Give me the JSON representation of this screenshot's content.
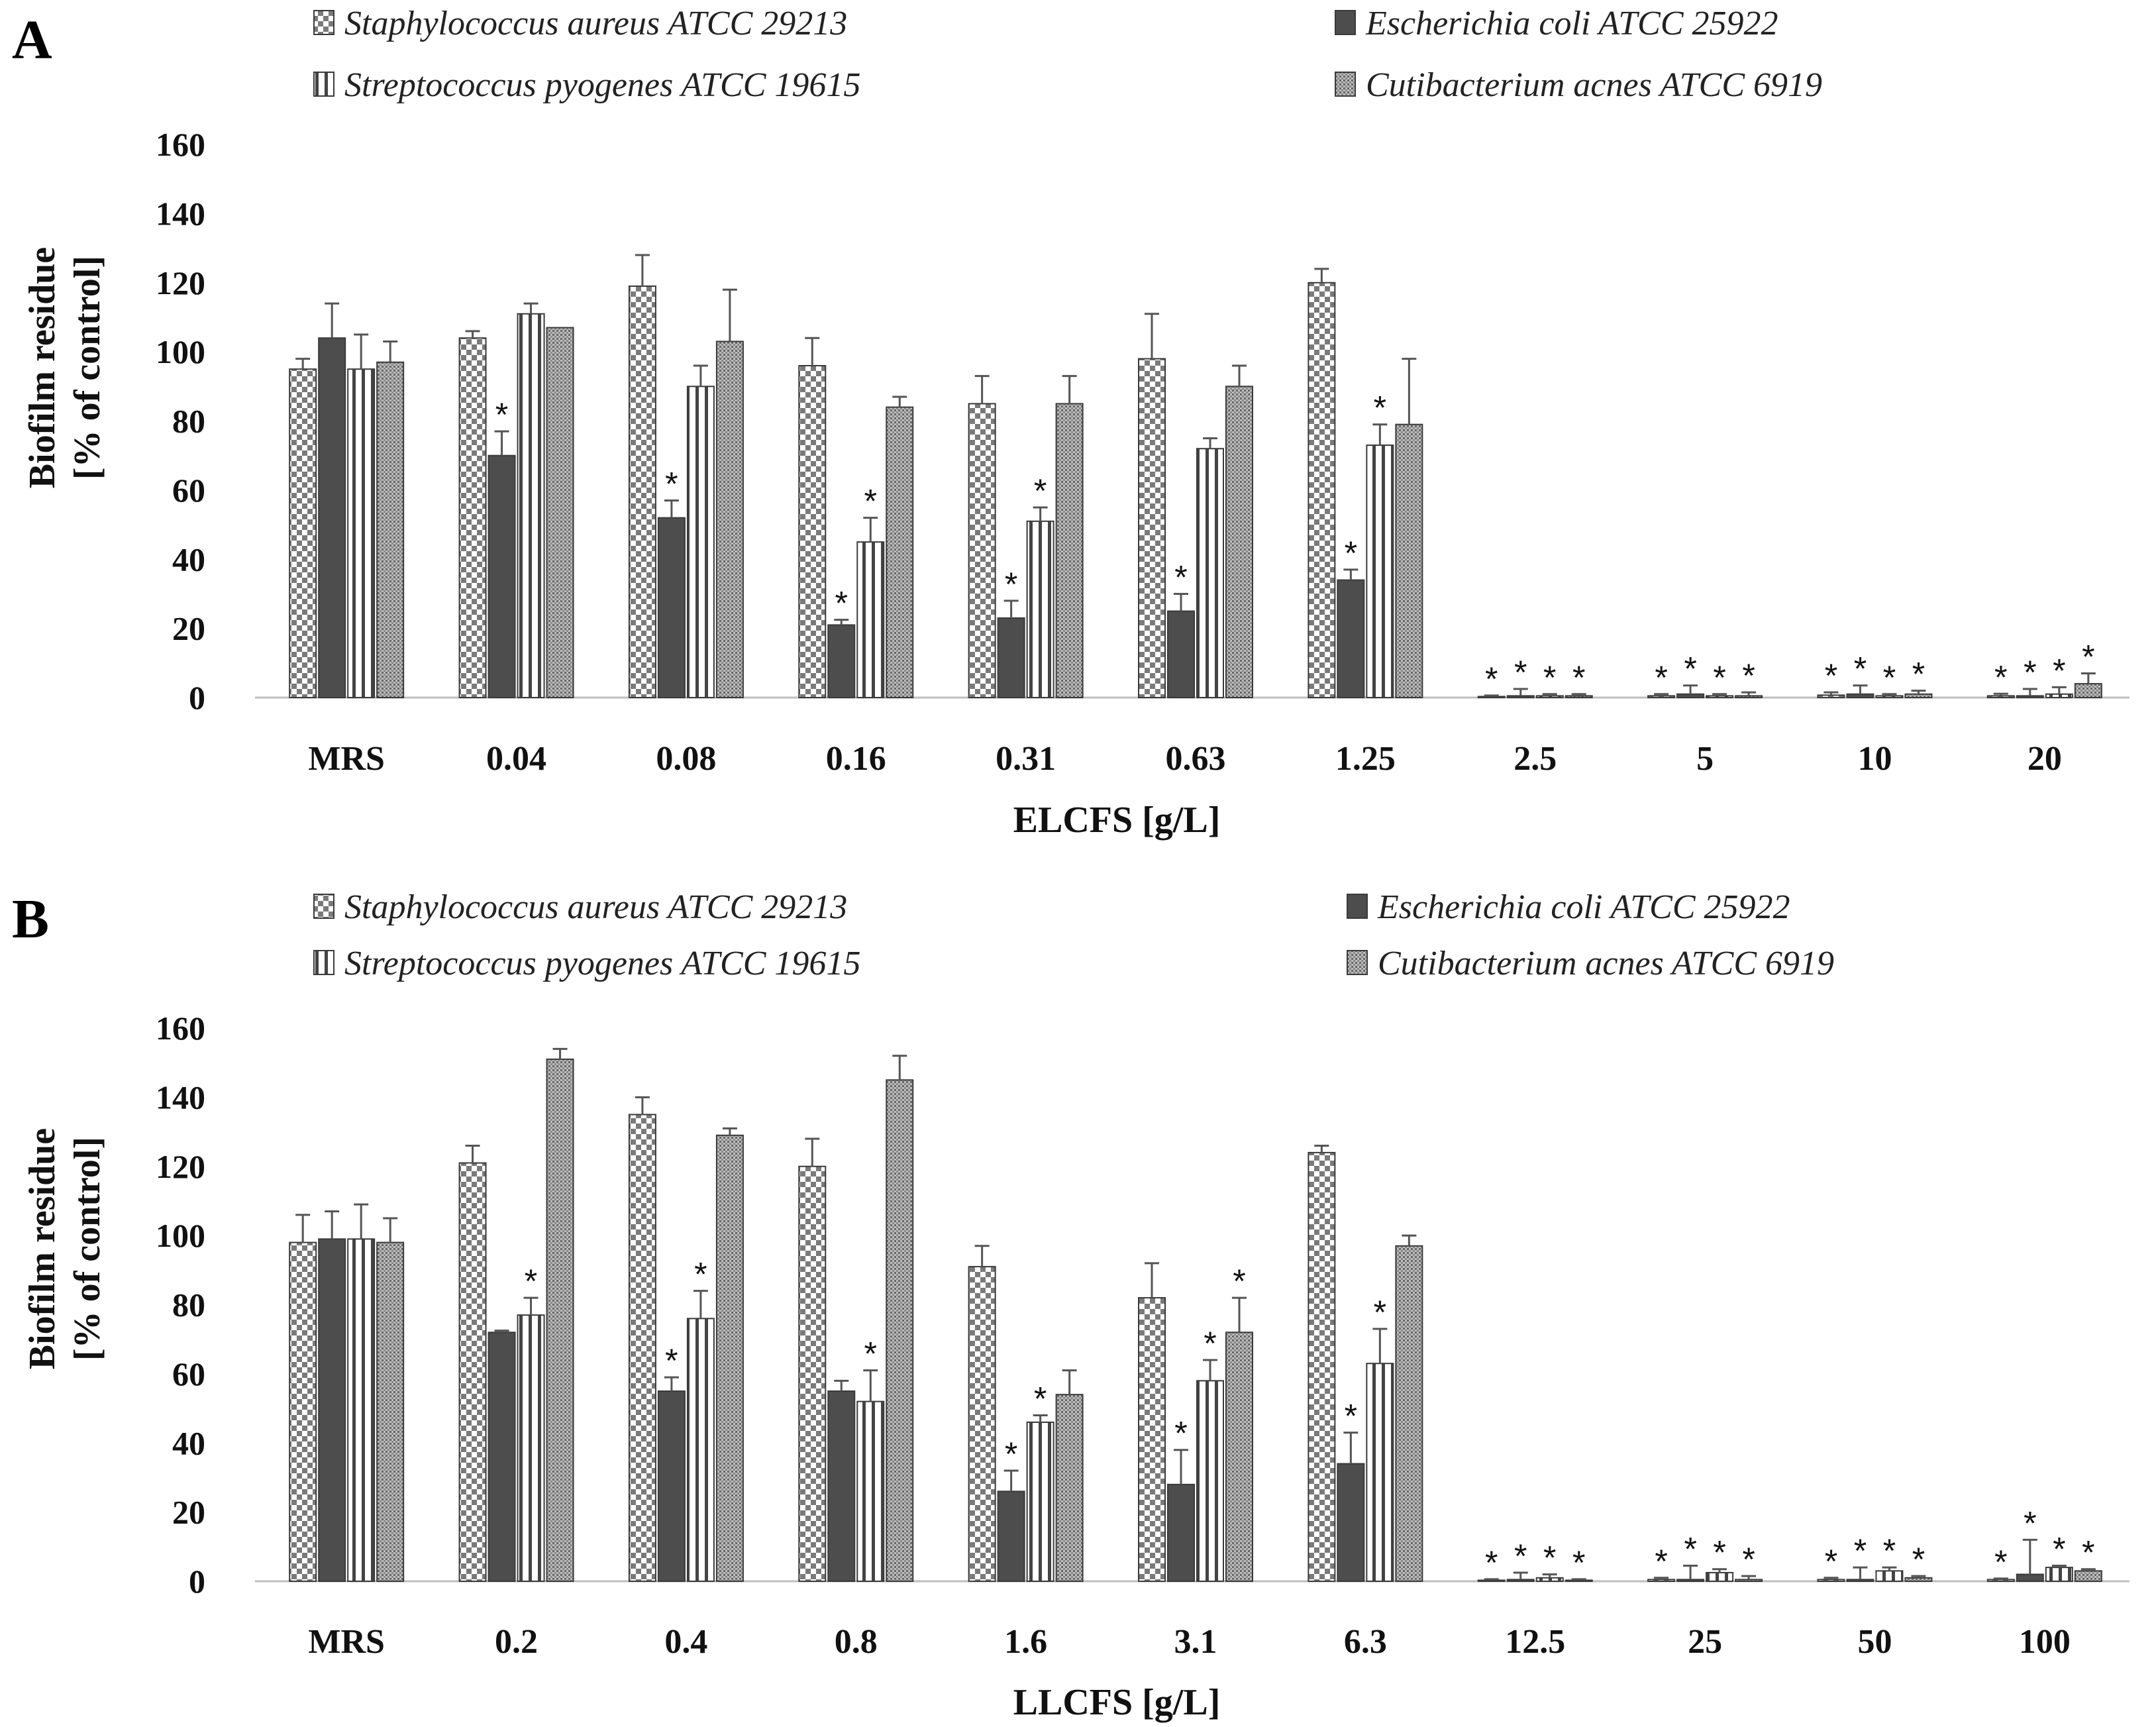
{
  "chart_data": [
    {
      "panel": "A",
      "type": "bar",
      "xlabel": "ELCFS [g/L]",
      "ylabel_line1": "Biofilm residue",
      "ylabel_line2": "[% of control]",
      "ylim": [
        0,
        160
      ],
      "yticks": [
        0,
        20,
        40,
        60,
        80,
        100,
        120,
        140,
        160
      ],
      "categories": [
        "MRS",
        "0.04",
        "0.08",
        "0.16",
        "0.31",
        "0.63",
        "1.25",
        "2.5",
        "5",
        "10",
        "20"
      ],
      "series": [
        {
          "name": "Staphylococcus aureus ATCC 29213",
          "pattern": "checker",
          "values": [
            95,
            104,
            119,
            96,
            85,
            98,
            120,
            0.3,
            0.5,
            0.7,
            0.5
          ],
          "errors": [
            3,
            2,
            9,
            8,
            8,
            13,
            4,
            0.3,
            0.5,
            0.8,
            0.6
          ],
          "sig": [
            false,
            false,
            false,
            false,
            false,
            false,
            false,
            true,
            true,
            true,
            true
          ]
        },
        {
          "name": "Escherichia coli ATCC 25922",
          "pattern": "solid",
          "values": [
            104,
            70,
            52,
            21,
            23,
            25,
            34,
            0.5,
            1,
            1,
            0.5
          ],
          "errors": [
            10,
            7,
            5,
            1.5,
            5,
            5,
            3,
            2,
            2.5,
            2.5,
            2
          ],
          "sig": [
            false,
            true,
            true,
            true,
            true,
            true,
            true,
            true,
            true,
            true,
            true
          ]
        },
        {
          "name": "Streptococcus pyogenes ATCC 19615",
          "pattern": "vstripe",
          "values": [
            95,
            111,
            90,
            45,
            51,
            72,
            73,
            0.5,
            0.5,
            0.5,
            1
          ],
          "errors": [
            10,
            3,
            6,
            7,
            4,
            3,
            6,
            0.5,
            0.5,
            0.5,
            2
          ],
          "sig": [
            false,
            false,
            false,
            true,
            true,
            false,
            true,
            true,
            true,
            true,
            true
          ]
        },
        {
          "name": "Cutibacterium acnes ATCC 6919",
          "pattern": "finegrid",
          "values": [
            97,
            107,
            103,
            84,
            85,
            90,
            79,
            0.5,
            0.5,
            1,
            4
          ],
          "errors": [
            6,
            0,
            15,
            3,
            8,
            6,
            19,
            0.5,
            1,
            1,
            3
          ],
          "sig": [
            false,
            false,
            false,
            false,
            false,
            false,
            false,
            true,
            true,
            true,
            true
          ]
        }
      ]
    },
    {
      "panel": "B",
      "type": "bar",
      "xlabel": "LLCFS [g/L]",
      "ylabel_line1": "Biofilm residue",
      "ylabel_line2": "[% of control]",
      "ylim": [
        0,
        160
      ],
      "yticks": [
        0,
        20,
        40,
        60,
        80,
        100,
        120,
        140,
        160
      ],
      "categories": [
        "MRS",
        "0.2",
        "0.4",
        "0.8",
        "1.6",
        "3.1",
        "6.3",
        "12.5",
        "25",
        "50",
        "100"
      ],
      "series": [
        {
          "name": "Staphylococcus aureus ATCC 29213",
          "pattern": "checker",
          "values": [
            98,
            121,
            135,
            120,
            91,
            82,
            124,
            0.3,
            0.5,
            0.5,
            0.5
          ],
          "errors": [
            8,
            5,
            5,
            8,
            6,
            10,
            2,
            0.3,
            0.5,
            0.5,
            0.3
          ],
          "sig": [
            false,
            false,
            false,
            false,
            false,
            false,
            false,
            true,
            true,
            true,
            true
          ]
        },
        {
          "name": "Escherichia coli ATCC 25922",
          "pattern": "solid",
          "values": [
            99,
            72,
            55,
            55,
            26,
            28,
            34,
            0.5,
            0.5,
            0.5,
            2
          ],
          "errors": [
            8,
            0.5,
            4,
            3,
            6,
            10,
            9,
            2,
            4,
            3.5,
            10
          ],
          "sig": [
            false,
            false,
            true,
            false,
            true,
            true,
            true,
            true,
            true,
            true,
            true
          ]
        },
        {
          "name": "Streptococcus pyogenes ATCC 19615",
          "pattern": "vstripe",
          "values": [
            99,
            77,
            76,
            52,
            46,
            58,
            63,
            1,
            2.5,
            3,
            4
          ],
          "errors": [
            10,
            5,
            8,
            9,
            2,
            6,
            10,
            1,
            1,
            1,
            0.5
          ],
          "sig": [
            false,
            true,
            true,
            true,
            true,
            true,
            true,
            true,
            true,
            true,
            true
          ]
        },
        {
          "name": "Cutibacterium acnes ATCC 6919",
          "pattern": "finegrid",
          "values": [
            98,
            151,
            129,
            145,
            54,
            72,
            97,
            0.3,
            0.5,
            1,
            3
          ],
          "errors": [
            7,
            3,
            2,
            7,
            7,
            10,
            3,
            0.3,
            1,
            0.5,
            0.5
          ],
          "sig": [
            false,
            false,
            false,
            false,
            false,
            true,
            false,
            true,
            true,
            true,
            true
          ]
        }
      ]
    }
  ]
}
